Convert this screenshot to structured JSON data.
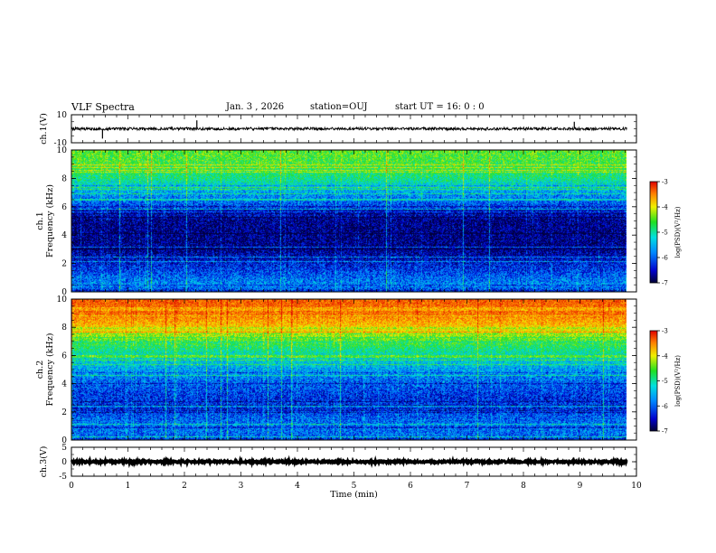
{
  "header": {
    "title": "VLF Spectra",
    "date": "Jan. 3 , 2026",
    "station": "station=OUJ",
    "start_time": "start UT =  16: 0  : 0"
  },
  "chart_data": {
    "type": "heatmap",
    "x_axis": {
      "label": "Time (min)",
      "range": [
        0,
        10
      ],
      "ticks": [
        "0",
        "1",
        "2",
        "3",
        "4",
        "5",
        "6",
        "7",
        "8",
        "9",
        "10"
      ]
    },
    "panels": [
      {
        "id": "ch1-waveform",
        "type": "line",
        "ylabel": "ch.1(V)",
        "ylim": [
          -10,
          10
        ],
        "yticks": [
          "10",
          "-10"
        ],
        "baseline": 0,
        "noise_amplitude": 1.0,
        "spikes": [
          {
            "t": 0.55,
            "v": -7
          },
          {
            "t": 2.22,
            "v": 6
          },
          {
            "t": 8.9,
            "v": 5
          }
        ]
      },
      {
        "id": "ch1-spectrogram",
        "type": "heatmap",
        "ylabel": "ch.1",
        "ylabel2": "Frequency (kHz)",
        "ylim": [
          0,
          10
        ],
        "yticks": [
          "0",
          "2",
          "4",
          "6",
          "8",
          "10"
        ],
        "profile_log_psd": [
          {
            "f": 0.0,
            "v": -6.3
          },
          {
            "f": 0.5,
            "v": -6.0
          },
          {
            "f": 2.0,
            "v": -6.5
          },
          {
            "f": 3.0,
            "v": -6.8
          },
          {
            "f": 4.0,
            "v": -6.8
          },
          {
            "f": 5.0,
            "v": -6.8
          },
          {
            "f": 6.0,
            "v": -6.3
          },
          {
            "f": 7.0,
            "v": -5.9
          },
          {
            "f": 8.0,
            "v": -5.3
          },
          {
            "f": 9.0,
            "v": -5.0
          },
          {
            "f": 10.0,
            "v": -4.9
          }
        ],
        "colorbar": {
          "label": "log(PSD)(V²/Hz)",
          "range": [
            -7,
            -3
          ],
          "ticks": [
            "-3",
            "-4",
            "-5",
            "-6",
            "-7"
          ]
        }
      },
      {
        "id": "ch2-spectrogram",
        "type": "heatmap",
        "ylabel": "ch.2",
        "ylabel2": "Frequency (kHz)",
        "ylim": [
          0,
          10
        ],
        "yticks": [
          "0",
          "2",
          "4",
          "6",
          "8",
          "10"
        ],
        "profile_log_psd": [
          {
            "f": 0.0,
            "v": -6.2
          },
          {
            "f": 1.0,
            "v": -6.1
          },
          {
            "f": 2.0,
            "v": -6.3
          },
          {
            "f": 3.0,
            "v": -6.4
          },
          {
            "f": 4.0,
            "v": -6.2
          },
          {
            "f": 5.0,
            "v": -5.9
          },
          {
            "f": 6.0,
            "v": -5.5
          },
          {
            "f": 7.0,
            "v": -5.0
          },
          {
            "f": 8.0,
            "v": -4.2
          },
          {
            "f": 9.0,
            "v": -3.7
          },
          {
            "f": 10.0,
            "v": -3.6
          }
        ],
        "colorbar": {
          "label": "log(PSD)(V²/Hz)",
          "range": [
            -7,
            -3
          ],
          "ticks": [
            "-3",
            "-4",
            "-5",
            "-6",
            "-7"
          ]
        }
      },
      {
        "id": "ch3-waveform",
        "type": "line",
        "ylabel": "ch.3(V)",
        "ylim": [
          -5,
          5
        ],
        "yticks": [
          "5",
          "0",
          "-5"
        ],
        "baseline": 0,
        "noise_amplitude": 0.35,
        "spikes": []
      }
    ],
    "data_end_min": 9.83
  }
}
